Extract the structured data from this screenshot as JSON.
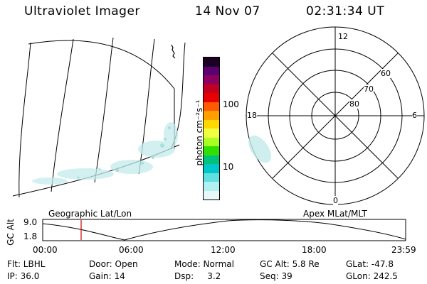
{
  "header": {
    "instrument": "Ultraviolet Imager",
    "date": "14 Nov 07",
    "time": "02:31:34 UT"
  },
  "colorbar": {
    "unit_label": "photon cm⁻²s⁻¹",
    "ticks": [
      "100",
      "10"
    ],
    "colors": [
      "#1a0022",
      "#5a0070",
      "#8e0060",
      "#c20020",
      "#e60000",
      "#ff5a00",
      "#ff9f00",
      "#ffd800",
      "#f0ff40",
      "#a8ff20",
      "#30e000",
      "#00c27a",
      "#00c8c8",
      "#60e0e0",
      "#b0f0f0",
      "#e8f8f8"
    ]
  },
  "polar": {
    "mlt_labels": [
      "12",
      "18",
      "6",
      "0"
    ],
    "lat_labels": [
      "60",
      "70",
      "80"
    ]
  },
  "timeline": {
    "y_axis_label": "GC Alt",
    "y_ticks": [
      "9.0",
      "1.8"
    ],
    "left_caption": "Geographic Lat/Lon",
    "right_caption": "Apex MLat/MLT",
    "x_ticks": [
      "00:00",
      "06:00",
      "12:00",
      "18:00",
      "23:59"
    ]
  },
  "info": {
    "flt": "Flt: LBHL",
    "ip": "IP: 36.0",
    "door": "Door: Open",
    "gain": "Gain: 14",
    "mode": "Mode: Normal",
    "dsp": "Dsp:     3.2",
    "gcalt": "GC Alt: 5.8 Re",
    "seq": "Seq: 39",
    "glat": "GLat: -47.8",
    "glon": "GLon: 242.5"
  }
}
